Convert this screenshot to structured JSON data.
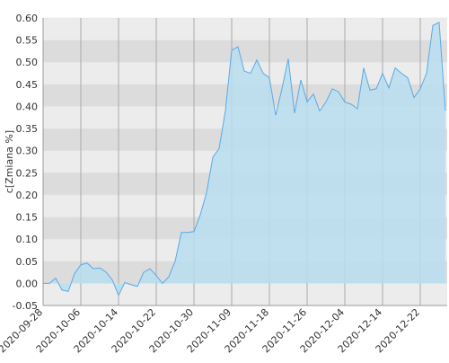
{
  "chart_data": {
    "type": "area",
    "y_label": "c[Zmiana %]",
    "categories": [
      "2020-09-28",
      null,
      null,
      null,
      null,
      null,
      "2020-10-06",
      null,
      null,
      null,
      null,
      null,
      "2020-10-14",
      null,
      null,
      null,
      null,
      null,
      "2020-10-22",
      null,
      null,
      null,
      null,
      null,
      "2020-10-30",
      null,
      null,
      null,
      null,
      null,
      "2020-11-09",
      null,
      null,
      null,
      null,
      null,
      "2020-11-18",
      null,
      null,
      null,
      null,
      null,
      "2020-11-26",
      null,
      null,
      null,
      null,
      null,
      "2020-12-04",
      null,
      null,
      null,
      null,
      null,
      "2020-12-14",
      null,
      null,
      null,
      null,
      null,
      "2020-12-22",
      null,
      null,
      null,
      null
    ],
    "values": [
      0.0,
      0.0,
      0.012,
      -0.015,
      -0.018,
      0.022,
      0.042,
      0.046,
      0.033,
      0.035,
      0.026,
      0.008,
      -0.027,
      0.002,
      -0.003,
      -0.007,
      0.025,
      0.033,
      0.018,
      0.0,
      0.015,
      0.05,
      0.115,
      0.115,
      0.117,
      0.155,
      0.205,
      0.285,
      0.305,
      0.39,
      0.527,
      0.535,
      0.48,
      0.475,
      0.505,
      0.475,
      0.465,
      0.38,
      0.44,
      0.508,
      0.385,
      0.46,
      0.41,
      0.428,
      0.39,
      0.41,
      0.44,
      0.433,
      0.41,
      0.405,
      0.395,
      0.487,
      0.437,
      0.44,
      0.475,
      0.442,
      0.487,
      0.475,
      0.465,
      0.42,
      0.44,
      0.475,
      0.583,
      0.59,
      0.39
    ],
    "color": "#5aa9e6",
    "fill": "#b9def0",
    "ylim": [
      -0.05,
      0.6
    ],
    "yticks": [
      {
        "value": -0.05,
        "label": "-0.05"
      },
      {
        "value": 0.0,
        "label": "0.00"
      },
      {
        "value": 0.05,
        "label": "0.05"
      },
      {
        "value": 0.1,
        "label": "0.10"
      },
      {
        "value": 0.15,
        "label": "0.15"
      },
      {
        "value": 0.2,
        "label": "0.20"
      },
      {
        "value": 0.25,
        "label": "0.25"
      },
      {
        "value": 0.3,
        "label": "0.30"
      },
      {
        "value": 0.35,
        "label": "0.35"
      },
      {
        "value": 0.4,
        "label": "0.40"
      },
      {
        "value": 0.45,
        "label": "0.45"
      },
      {
        "value": 0.5,
        "label": "0.50"
      },
      {
        "value": 0.55,
        "label": "0.55"
      },
      {
        "value": 0.6,
        "label": "0.60"
      }
    ],
    "grid": true
  }
}
